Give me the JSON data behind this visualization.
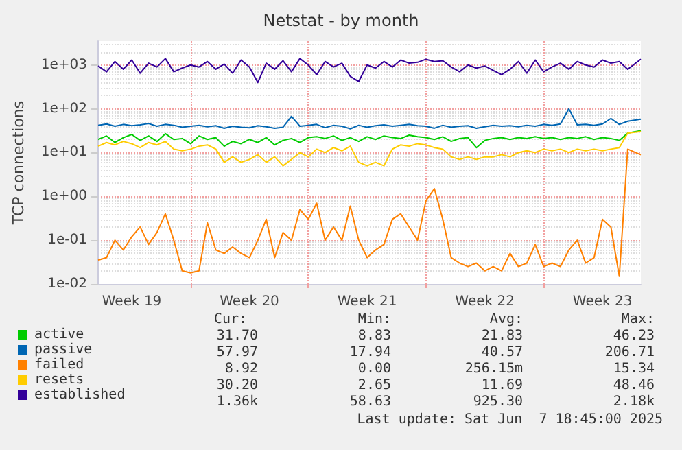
{
  "chart_data": {
    "type": "line",
    "title": "Netstat - by month",
    "ylabel": "TCP connections",
    "log": true,
    "grid": true,
    "legend": "bottom",
    "marker": "none",
    "line_style": "solid",
    "ylim": [
      0.01,
      3500
    ],
    "yticks": [
      {
        "value": 0.01,
        "label": "1e-02"
      },
      {
        "value": 0.1,
        "label": "1e-01"
      },
      {
        "value": 1,
        "label": "1e+00"
      },
      {
        "value": 10,
        "label": "1e+01"
      },
      {
        "value": 100,
        "label": "1e+02"
      },
      {
        "value": 1000,
        "label": "1e+03"
      }
    ],
    "xlim": [
      "2025-05-06T12:00",
      "2025-06-07T18:45"
    ],
    "xticks": [
      {
        "value": "2025-05-08T12:00",
        "label": "Week 19"
      },
      {
        "value": "2025-05-12",
        "label": null
      },
      {
        "value": "2025-05-15T12:00",
        "label": "Week 20"
      },
      {
        "value": "2025-05-19",
        "label": null
      },
      {
        "value": "2025-05-22T12:00",
        "label": "Week 21"
      },
      {
        "value": "2025-05-26",
        "label": null
      },
      {
        "value": "2025-05-29T12:00",
        "label": "Week 22"
      },
      {
        "value": "2025-06-02",
        "label": null
      },
      {
        "value": "2025-06-05T12:00",
        "label": "Week 23"
      }
    ],
    "x": [
      "2025-05-06T12:00",
      "2025-05-07T00:00",
      "2025-05-07T12:00",
      "2025-05-08T00:00",
      "2025-05-08T12:00",
      "2025-05-09T00:00",
      "2025-05-09T12:00",
      "2025-05-10T00:00",
      "2025-05-10T12:00",
      "2025-05-11T00:00",
      "2025-05-11T12:00",
      "2025-05-12T00:00",
      "2025-05-12T12:00",
      "2025-05-13T00:00",
      "2025-05-13T12:00",
      "2025-05-14T00:00",
      "2025-05-14T12:00",
      "2025-05-15T00:00",
      "2025-05-15T12:00",
      "2025-05-16T00:00",
      "2025-05-16T12:00",
      "2025-05-17T00:00",
      "2025-05-17T12:00",
      "2025-05-18T00:00",
      "2025-05-18T12:00",
      "2025-05-19T00:00",
      "2025-05-19T12:00",
      "2025-05-20T00:00",
      "2025-05-20T12:00",
      "2025-05-21T00:00",
      "2025-05-21T12:00",
      "2025-05-22T00:00",
      "2025-05-22T12:00",
      "2025-05-23T00:00",
      "2025-05-23T12:00",
      "2025-05-24T00:00",
      "2025-05-24T12:00",
      "2025-05-25T00:00",
      "2025-05-25T12:00",
      "2025-05-26T00:00",
      "2025-05-26T12:00",
      "2025-05-27T00:00",
      "2025-05-27T12:00",
      "2025-05-28T00:00",
      "2025-05-28T12:00",
      "2025-05-29T00:00",
      "2025-05-29T12:00",
      "2025-05-30T00:00",
      "2025-05-30T12:00",
      "2025-05-31T00:00",
      "2025-05-31T12:00",
      "2025-06-01T00:00",
      "2025-06-01T12:00",
      "2025-06-02T00:00",
      "2025-06-02T12:00",
      "2025-06-03T00:00",
      "2025-06-03T12:00",
      "2025-06-04T00:00",
      "2025-06-04T12:00",
      "2025-06-05T00:00",
      "2025-06-05T12:00",
      "2025-06-06T00:00",
      "2025-06-06T12:00",
      "2025-06-07T00:00",
      "2025-06-07T18:45"
    ],
    "series": [
      {
        "name": "active",
        "color": "#00cc00",
        "values": [
          20,
          24,
          17,
          22,
          26,
          19,
          24,
          18,
          27,
          20,
          21,
          16,
          24,
          20,
          22,
          14,
          18,
          16,
          20,
          17,
          22,
          15,
          19,
          21,
          17,
          22,
          23,
          21,
          24,
          19,
          22,
          18,
          23,
          20,
          24,
          22,
          21,
          25,
          23,
          22,
          20,
          23,
          18,
          21,
          22,
          13,
          19,
          21,
          22,
          20,
          22,
          21,
          23,
          21,
          22,
          20,
          22,
          21,
          23,
          20,
          22,
          21,
          19,
          28,
          31.7
        ]
      },
      {
        "name": "passive",
        "color": "#0066b3",
        "values": [
          42,
          45,
          40,
          44,
          41,
          43,
          46,
          40,
          44,
          42,
          38,
          40,
          42,
          39,
          41,
          36,
          40,
          38,
          37,
          41,
          39,
          36,
          38,
          67,
          40,
          42,
          44,
          37,
          42,
          40,
          35,
          42,
          38,
          41,
          43,
          40,
          42,
          44,
          41,
          40,
          36,
          42,
          38,
          40,
          41,
          36,
          39,
          42,
          40,
          41,
          39,
          42,
          40,
          44,
          42,
          45,
          100,
          43,
          44,
          42,
          45,
          60,
          44,
          52,
          57.97
        ]
      },
      {
        "name": "failed",
        "color": "#ff8000",
        "values": [
          0.035,
          0.04,
          0.1,
          0.06,
          0.12,
          0.2,
          0.08,
          0.15,
          0.4,
          0.1,
          0.02,
          0.018,
          0.02,
          0.25,
          0.06,
          0.05,
          0.07,
          0.05,
          0.04,
          0.1,
          0.3,
          0.04,
          0.15,
          0.1,
          0.5,
          0.3,
          0.7,
          0.1,
          0.2,
          0.1,
          0.6,
          0.1,
          0.04,
          0.06,
          0.08,
          0.3,
          0.4,
          0.2,
          0.1,
          0.8,
          1.5,
          0.3,
          0.04,
          0.03,
          0.025,
          0.03,
          0.02,
          0.025,
          0.02,
          0.05,
          0.025,
          0.03,
          0.08,
          0.025,
          0.03,
          0.025,
          0.06,
          0.1,
          0.03,
          0.04,
          0.3,
          0.2,
          0.015,
          12,
          8.92
        ]
      },
      {
        "name": "resets",
        "color": "#ffcc00",
        "values": [
          14,
          17,
          15,
          18,
          16,
          13,
          17,
          15,
          18,
          12,
          11,
          12,
          14,
          15,
          12,
          6,
          8,
          6,
          7,
          9,
          6,
          8,
          5,
          7,
          10,
          8,
          12,
          10,
          13,
          11,
          14,
          6,
          5,
          6,
          5,
          12,
          15,
          14,
          16,
          15,
          13,
          12,
          8,
          7,
          8,
          7,
          8,
          8,
          9,
          8,
          10,
          11,
          10,
          12,
          11,
          12,
          10,
          12,
          11,
          12,
          11,
          12,
          13,
          28,
          30.2
        ]
      },
      {
        "name": "established",
        "color": "#330099",
        "values": [
          950,
          700,
          1200,
          800,
          1300,
          650,
          1100,
          900,
          1400,
          700,
          850,
          1000,
          900,
          1200,
          800,
          1050,
          650,
          1300,
          900,
          400,
          1100,
          800,
          1250,
          700,
          1400,
          1000,
          600,
          1200,
          900,
          1100,
          550,
          420,
          1000,
          850,
          1200,
          900,
          1300,
          1100,
          1150,
          1350,
          1200,
          1250,
          900,
          700,
          1000,
          850,
          950,
          750,
          600,
          800,
          1200,
          650,
          1300,
          700,
          900,
          1100,
          800,
          1200,
          1000,
          900,
          1300,
          1100,
          1200,
          800,
          1360
        ]
      }
    ],
    "annotations": [
      "Cur:",
      "Min:",
      "Avg:",
      "Max:",
      "31.70",
      "8.83",
      "21.83",
      "46.23",
      "57.97",
      "17.94",
      "40.57",
      "206.71",
      "8.92",
      "0.00",
      "256.15m",
      "15.34",
      "30.20",
      "2.65",
      "11.69",
      "48.46",
      "1.36k",
      "58.63",
      "925.30",
      "2.18k",
      "Last update: Sat Jun  7 18:45:00 2025"
    ]
  }
}
